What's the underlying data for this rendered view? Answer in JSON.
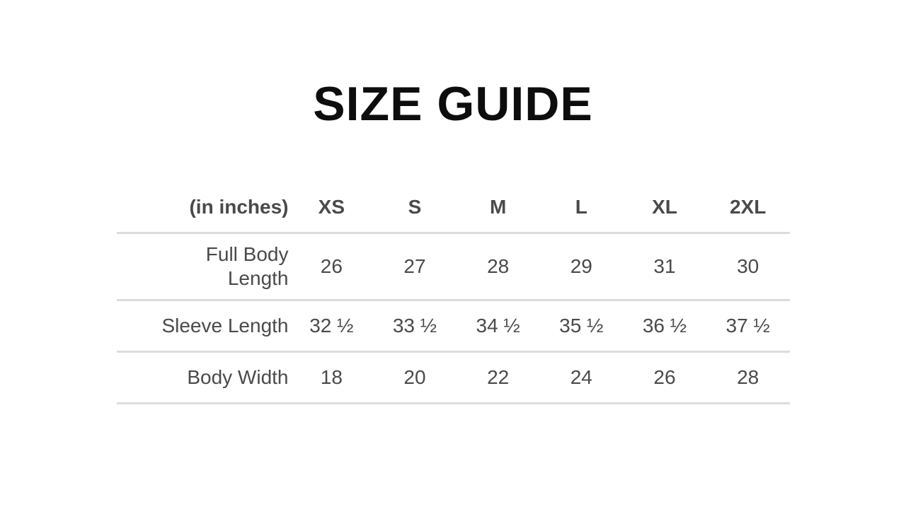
{
  "title": "SIZE GUIDE",
  "table": {
    "unit_label": "(in inches)",
    "columns": [
      "XS",
      "S",
      "M",
      "L",
      "XL",
      "2XL"
    ],
    "rows": [
      {
        "label": "Full Body Length",
        "values": [
          "26",
          "27",
          "28",
          "29",
          "31",
          "30"
        ]
      },
      {
        "label": "Sleeve Length",
        "values": [
          "32 ½",
          "33 ½",
          "34 ½",
          "35 ½",
          "36 ½",
          "37 ½"
        ]
      },
      {
        "label": "Body Width",
        "values": [
          "18",
          "20",
          "22",
          "24",
          "26",
          "28"
        ]
      }
    ]
  },
  "colors": {
    "background": "#ffffff",
    "title_text": "#0d0d0d",
    "table_text": "#4a4a4a",
    "rule_line": "#dcdcdc"
  },
  "chart_data": {
    "type": "table",
    "title": "SIZE GUIDE",
    "unit": "inches",
    "columns": [
      "XS",
      "S",
      "M",
      "L",
      "XL",
      "2XL"
    ],
    "rows": [
      {
        "label": "Full Body Length",
        "values": [
          26,
          27,
          28,
          29,
          31,
          30
        ]
      },
      {
        "label": "Sleeve Length",
        "values": [
          32.5,
          33.5,
          34.5,
          35.5,
          36.5,
          37.5
        ]
      },
      {
        "label": "Body Width",
        "values": [
          18,
          20,
          22,
          24,
          26,
          28
        ]
      }
    ]
  }
}
